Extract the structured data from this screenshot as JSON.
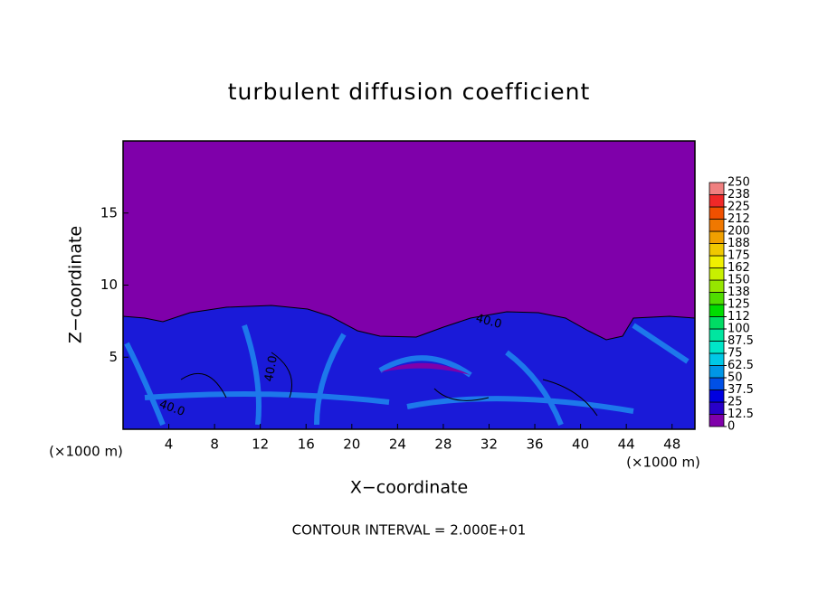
{
  "chart_data": {
    "type": "contour",
    "title": "turbulent diffusion coefficient",
    "x_label": "X−coordinate",
    "y_label": "Z−coordinate",
    "x_unit_left": "(×1000 m)",
    "x_unit_right": "(×1000 m)",
    "footer": "CONTOUR INTERVAL = 2.000E+01",
    "annotations": [
      "40.0",
      "40.0",
      "40.0"
    ],
    "xlim": [
      0,
      50
    ],
    "ylim": [
      0,
      20
    ],
    "xticks": [
      4,
      8,
      12,
      16,
      20,
      24,
      28,
      32,
      36,
      40,
      44,
      48
    ],
    "yticks": [
      5,
      10,
      15
    ],
    "colorbar": {
      "ticks": [
        0,
        12.5,
        25,
        37.5,
        50,
        62.5,
        75,
        87.5,
        100,
        {
          "value": 112.5,
          "label": "112"
        },
        125,
        {
          "value": 137.5,
          "label": "138"
        },
        150,
        {
          "value": 162.5,
          "label": "162"
        },
        175,
        {
          "value": 187.5,
          "label": "188"
        },
        200,
        {
          "value": 212.5,
          "label": "212"
        },
        225,
        {
          "value": 237.5,
          "label": "238"
        },
        250
      ],
      "colors": [
        "#7f00aa",
        "#2800c8",
        "#0000e0",
        "#0050e6",
        "#0096e6",
        "#00c8e6",
        "#00e6c8",
        "#00e6a0",
        "#00dc64",
        "#00dc00",
        "#50dc00",
        "#96e600",
        "#c8f000",
        "#f0f000",
        "#f0c800",
        "#f0a000",
        "#f07800",
        "#f05000",
        "#f02828",
        "#f08080"
      ]
    }
  }
}
